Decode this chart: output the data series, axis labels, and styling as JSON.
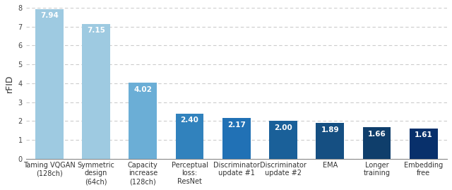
{
  "categories": [
    "Taming VQGAN\n(128ch)",
    "Symmetric\ndesign\n(64ch)",
    "Capacity\nincrease\n(128ch)",
    "Perceptual\nloss:\nResNet",
    "Discriminator\nupdate #1",
    "Discriminator\nupdate #2",
    "EMA",
    "Longer\ntraining",
    "Embedding\nfree"
  ],
  "values": [
    7.94,
    7.15,
    4.02,
    2.4,
    2.17,
    2.0,
    1.89,
    1.66,
    1.61
  ],
  "bar_colors": [
    "#9ECAE1",
    "#9ECAE1",
    "#6BAED6",
    "#3182BD",
    "#2171B5",
    "#1A6099",
    "#154F82",
    "#0F3E6B",
    "#08306B"
  ],
  "ylabel": "rFID",
  "ylim": [
    0,
    8
  ],
  "yticks": [
    0,
    1,
    2,
    3,
    4,
    5,
    6,
    7,
    8
  ],
  "value_fontsize": 7.5,
  "ylabel_fontsize": 9,
  "tick_fontsize": 7,
  "background_color": "#ffffff",
  "grid_color": "#cccccc",
  "bar_width": 0.6
}
